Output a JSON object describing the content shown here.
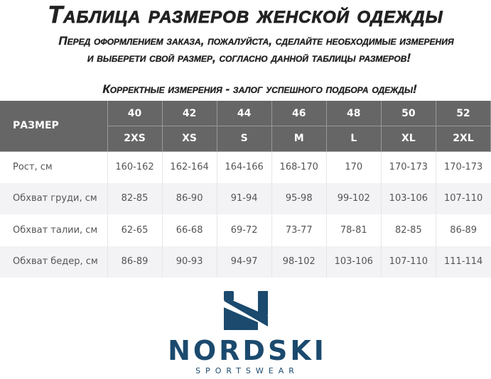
{
  "title": "Таблица размеров женской одежды",
  "instructions": [
    "Перед оформлением заказа, пожалуйста, сделайте необходимые измерения",
    "и выберети свой размер, согласно данной таблицы размеров!"
  ],
  "tagline": "Корректные измерения - залог успешного подбора одежды!",
  "table": {
    "header_label": "РАЗМЕР",
    "ru_sizes": [
      "40",
      "42",
      "44",
      "46",
      "48",
      "50",
      "52"
    ],
    "intl_sizes": [
      "2XS",
      "XS",
      "S",
      "M",
      "L",
      "XL",
      "2XL"
    ],
    "rows": [
      {
        "label": "Рост, см",
        "values": [
          "160-162",
          "162-164",
          "164-166",
          "168-170",
          "170",
          "170-173",
          "170-173"
        ]
      },
      {
        "label": "Обхват груди, см",
        "values": [
          "82-85",
          "86-90",
          "91-94",
          "95-98",
          "99-102",
          "103-106",
          "107-110"
        ]
      },
      {
        "label": "Обхват талии, см",
        "values": [
          "62-65",
          "66-68",
          "69-72",
          "73-77",
          "78-81",
          "82-85",
          "86-89"
        ]
      },
      {
        "label": "Обхват бедер, см",
        "values": [
          "86-89",
          "90-93",
          "94-97",
          "98-102",
          "103-106",
          "107-110",
          "111-114"
        ]
      }
    ]
  },
  "logo": {
    "brand": "NORDSKI",
    "tagline": "SPORTSWEAR",
    "color": "#1b4a6e"
  }
}
